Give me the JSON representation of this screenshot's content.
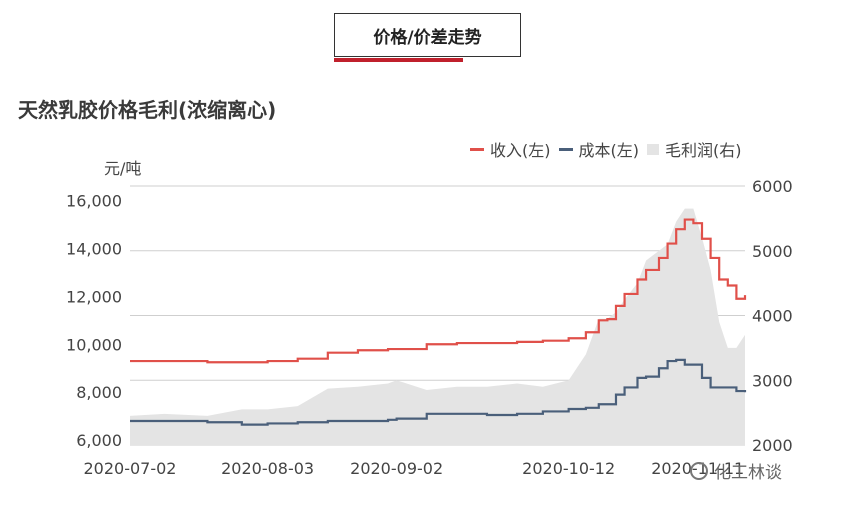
{
  "tab": {
    "label": "价格/价差走势"
  },
  "chart_data": {
    "type": "line",
    "title": "天然乳胶价格毛利(浓缩离心)",
    "ylabel_left": "元/吨",
    "y_left_ticks": [
      "16,000",
      "14,000",
      "12,000",
      "10,000",
      "8,000",
      "6,000"
    ],
    "y_right_ticks": [
      "6000",
      "5000",
      "4000",
      "3000",
      "2000"
    ],
    "x_ticks": [
      "2020-07-02",
      "2020-08-03",
      "2020-09-02",
      "2020-10-12",
      "2020-11-11"
    ],
    "grid": true,
    "legend_position": "top-right",
    "colors": {
      "revenue": "#e0504a",
      "cost": "#4a5f7a",
      "margin": "#e4e4e4"
    },
    "series": [
      {
        "name": "收入(左)",
        "axis": "left",
        "kind": "line",
        "x": [
          "2020-07-02",
          "2020-07-10",
          "2020-07-20",
          "2020-07-28",
          "2020-08-03",
          "2020-08-10",
          "2020-08-17",
          "2020-08-24",
          "2020-08-31",
          "2020-09-02",
          "2020-09-09",
          "2020-09-16",
          "2020-09-23",
          "2020-09-30",
          "2020-10-06",
          "2020-10-12",
          "2020-10-16",
          "2020-10-19",
          "2020-10-21",
          "2020-10-23",
          "2020-10-25",
          "2020-10-28",
          "2020-10-30",
          "2020-11-02",
          "2020-11-04",
          "2020-11-06",
          "2020-11-08",
          "2020-11-10",
          "2020-11-12",
          "2020-11-14",
          "2020-11-16",
          "2020-11-18",
          "2020-11-20",
          "2020-11-22"
        ],
        "y": [
          9300,
          9300,
          9250,
          9250,
          9300,
          9400,
          9650,
          9750,
          9800,
          9800,
          10000,
          10050,
          10050,
          10100,
          10150,
          10250,
          10500,
          11000,
          11050,
          11600,
          12100,
          12700,
          13100,
          13600,
          14200,
          14800,
          15200,
          15050,
          14400,
          13600,
          12700,
          12450,
          11900,
          12050
        ]
      },
      {
        "name": "成本(左)",
        "axis": "left",
        "kind": "line",
        "x": [
          "2020-07-02",
          "2020-07-10",
          "2020-07-20",
          "2020-07-28",
          "2020-08-03",
          "2020-08-10",
          "2020-08-17",
          "2020-08-24",
          "2020-08-31",
          "2020-09-02",
          "2020-09-09",
          "2020-09-16",
          "2020-09-23",
          "2020-09-30",
          "2020-10-06",
          "2020-10-12",
          "2020-10-16",
          "2020-10-19",
          "2020-10-21",
          "2020-10-23",
          "2020-10-25",
          "2020-10-28",
          "2020-10-30",
          "2020-11-02",
          "2020-11-04",
          "2020-11-06",
          "2020-11-08",
          "2020-11-10",
          "2020-11-12",
          "2020-11-14",
          "2020-11-16",
          "2020-11-18",
          "2020-11-20",
          "2020-11-22"
        ],
        "y": [
          6800,
          6800,
          6750,
          6650,
          6700,
          6750,
          6800,
          6800,
          6850,
          6900,
          7100,
          7100,
          7050,
          7100,
          7200,
          7300,
          7350,
          7500,
          7500,
          7900,
          8200,
          8600,
          8650,
          9000,
          9300,
          9350,
          9150,
          9150,
          8600,
          8200,
          8200,
          8200,
          8050,
          8000
        ]
      },
      {
        "name": "毛利润(右)",
        "axis": "right",
        "kind": "area",
        "x": [
          "2020-07-02",
          "2020-07-10",
          "2020-07-20",
          "2020-07-28",
          "2020-08-03",
          "2020-08-10",
          "2020-08-17",
          "2020-08-24",
          "2020-08-31",
          "2020-09-02",
          "2020-09-09",
          "2020-09-16",
          "2020-09-23",
          "2020-09-30",
          "2020-10-06",
          "2020-10-12",
          "2020-10-16",
          "2020-10-19",
          "2020-10-21",
          "2020-10-23",
          "2020-10-25",
          "2020-10-28",
          "2020-10-30",
          "2020-11-02",
          "2020-11-04",
          "2020-11-06",
          "2020-11-08",
          "2020-11-10",
          "2020-11-12",
          "2020-11-14",
          "2020-11-16",
          "2020-11-18",
          "2020-11-20",
          "2020-11-22"
        ],
        "y": [
          2450,
          2480,
          2450,
          2550,
          2550,
          2600,
          2870,
          2900,
          2950,
          3000,
          2850,
          2900,
          2900,
          2950,
          2900,
          3000,
          3400,
          3950,
          3950,
          4050,
          4250,
          4500,
          4850,
          5000,
          5100,
          5450,
          5650,
          5650,
          5200,
          4700,
          3900,
          3500,
          3500,
          3700
        ]
      }
    ],
    "ylim_left": [
      5800,
      16600
    ],
    "ylim_right": [
      2000,
      6000
    ]
  },
  "watermark": {
    "text": "化工林谈"
  }
}
